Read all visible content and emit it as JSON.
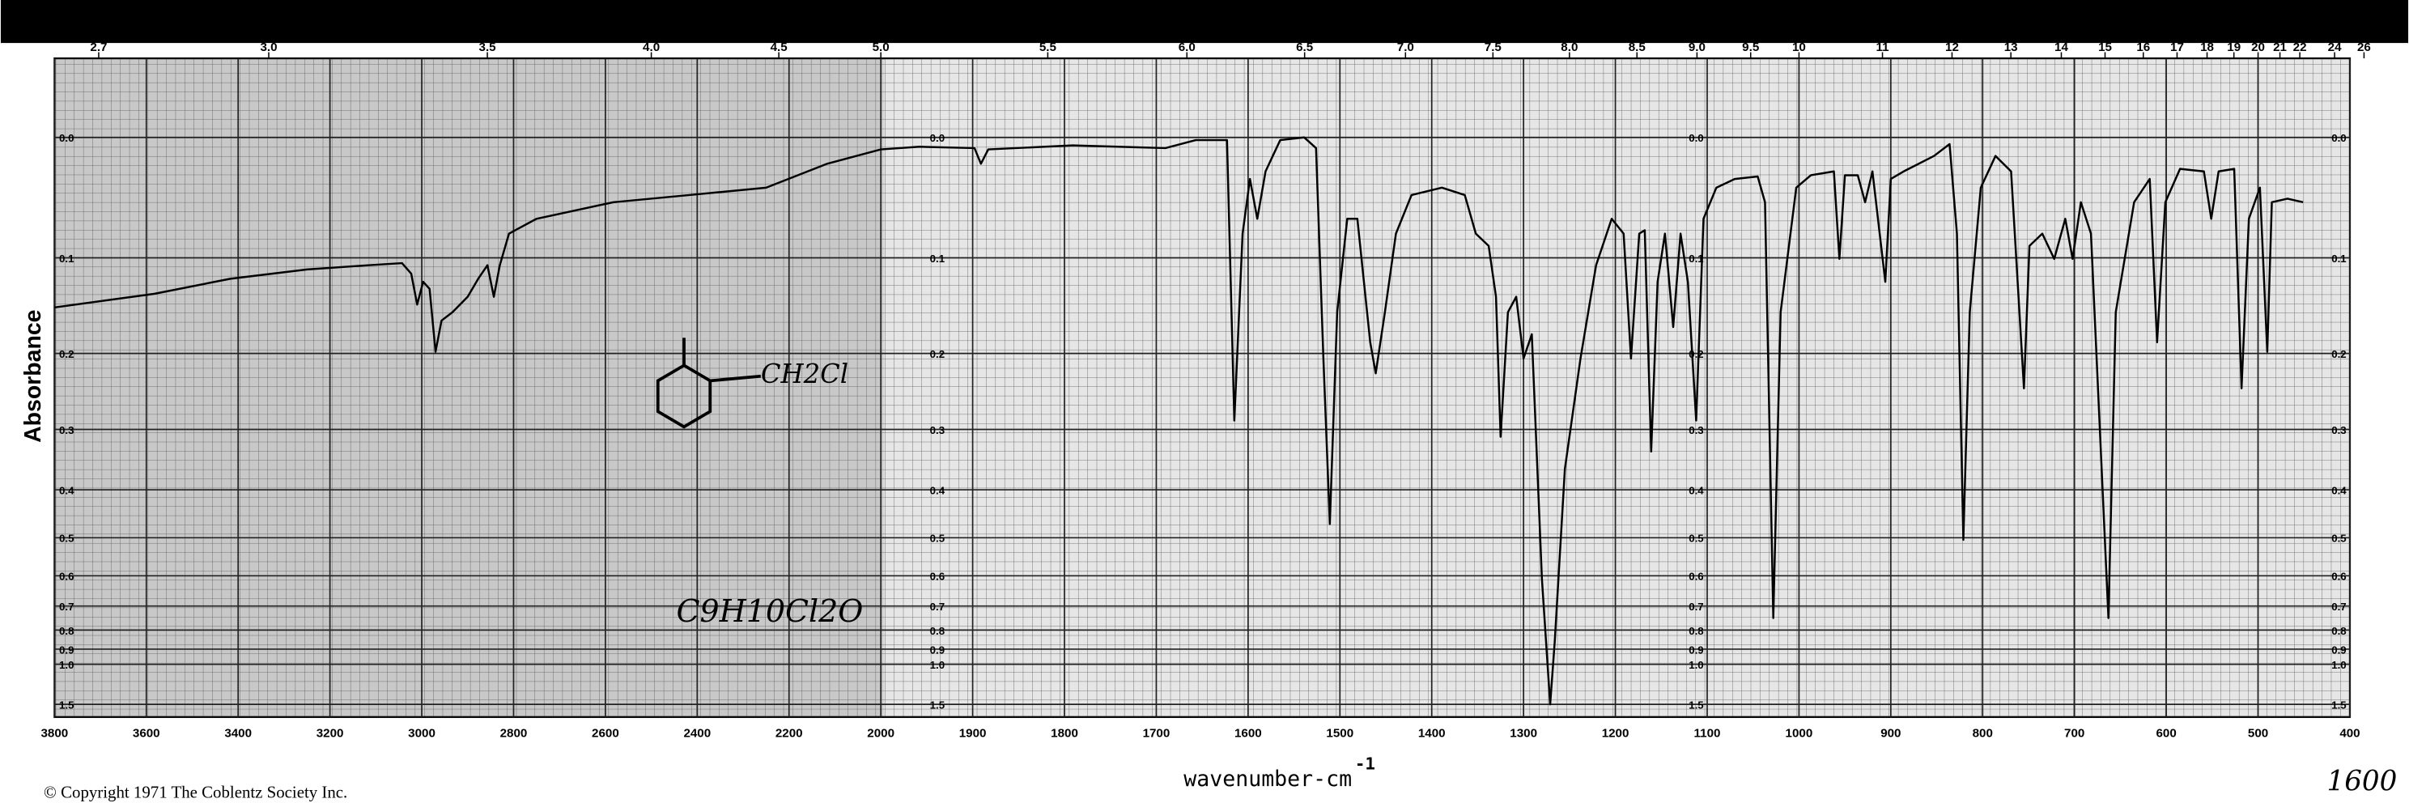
{
  "chart_data": {
    "type": "line",
    "xlabel": "wavenumber-cm",
    "xlabel_superscript": "-1",
    "ylabel": "Absorbance",
    "footer": "© Copyright 1971  The Coblentz Society Inc.",
    "annotations": [
      "C9H10Cl2O",
      "CH2Cl",
      "1600"
    ],
    "color": "#000000",
    "grid": true,
    "yscale": "absorbance",
    "x": [
      3800,
      3583,
      3417,
      3250,
      3117,
      3043,
      3023,
      3010,
      2997,
      2983,
      2970,
      2957,
      2933,
      2900,
      2877,
      2857,
      2843,
      2830,
      2810,
      2750,
      2583,
      2417,
      2250,
      2117,
      2000,
      1958,
      1898,
      1891,
      1883,
      1791,
      1690,
      1657,
      1623,
      1615,
      1606,
      1598,
      1590,
      1581,
      1565,
      1539,
      1526,
      1518,
      1511,
      1503,
      1492,
      1481,
      1467,
      1461,
      1451,
      1439,
      1422,
      1389,
      1364,
      1352,
      1338,
      1330,
      1325,
      1317,
      1308,
      1300,
      1291,
      1280,
      1271,
      1266,
      1255,
      1238,
      1221,
      1204,
      1191,
      1183,
      1174,
      1168,
      1161,
      1154,
      1146,
      1137,
      1129,
      1121,
      1112,
      1104,
      1090,
      1070,
      1045,
      1037,
      1028,
      1020,
      1003,
      987,
      962,
      956,
      950,
      936,
      928,
      920,
      906,
      900,
      886,
      853,
      836,
      828,
      821,
      814,
      802,
      786,
      769,
      755,
      749,
      735,
      722,
      710,
      702,
      693,
      682,
      663,
      655,
      635,
      618,
      610,
      601,
      585,
      559,
      551,
      543,
      526,
      518,
      510,
      498,
      490,
      485,
      468,
      451
    ],
    "values": [
      0.149,
      0.135,
      0.12,
      0.111,
      0.107,
      0.105,
      0.115,
      0.146,
      0.123,
      0.13,
      0.198,
      0.163,
      0.154,
      0.138,
      0.12,
      0.107,
      0.138,
      0.107,
      0.078,
      0.065,
      0.051,
      0.045,
      0.039,
      0.02,
      0.009,
      0.007,
      0.008,
      0.02,
      0.009,
      0.006,
      0.008,
      0.002,
      0.002,
      0.287,
      0.078,
      0.032,
      0.065,
      0.026,
      0.002,
      0,
      0.008,
      0.206,
      0.469,
      0.154,
      0.065,
      0.065,
      0.187,
      0.224,
      0.154,
      0.078,
      0.045,
      0.039,
      0.045,
      0.078,
      0.089,
      0.138,
      0.311,
      0.154,
      0.138,
      0.206,
      0.178,
      0.609,
      1.5,
      0.856,
      0.363,
      0.206,
      0.107,
      0.065,
      0.078,
      0.206,
      0.078,
      0.075,
      0.334,
      0.123,
      0.078,
      0.17,
      0.078,
      0.123,
      0.287,
      0.065,
      0.039,
      0.032,
      0.03,
      0.051,
      0.747,
      0.154,
      0.039,
      0.029,
      0.026,
      0.101,
      0.029,
      0.029,
      0.051,
      0.026,
      0.123,
      0.032,
      0.026,
      0.014,
      0.005,
      0.078,
      0.505,
      0.154,
      0.039,
      0.014,
      0.026,
      0.243,
      0.089,
      0.078,
      0.101,
      0.065,
      0.101,
      0.051,
      0.078,
      0.747,
      0.154,
      0.051,
      0.032,
      0.187,
      0.051,
      0.024,
      0.026,
      0.065,
      0.026,
      0.024,
      0.243,
      0.065,
      0.039,
      0.198,
      0.051,
      0.048,
      0.051
    ],
    "xlim": [
      3800,
      400
    ],
    "xticks": [
      3800,
      3600,
      3400,
      3200,
      3000,
      2800,
      2600,
      2400,
      2200,
      2000,
      1900,
      1800,
      1700,
      1600,
      1500,
      1400,
      1300,
      1200,
      1100,
      1000,
      900,
      800,
      700,
      600,
      500,
      400
    ],
    "ylim": [
      -0.055,
      2
    ],
    "yticks": [
      {
        "value": 0,
        "label": "0.0"
      },
      0.1,
      0.2,
      0.3,
      0.4,
      0.5,
      0.6,
      0.7,
      0.8,
      0.9,
      {
        "value": 1,
        "label": "1.0"
      },
      1.5
    ],
    "x2scale": "micrometer",
    "x2ticks": [
      2.7,
      {
        "value": 3,
        "label": "3.0"
      },
      3.5,
      {
        "value": 4,
        "label": "4.0"
      },
      4.5,
      {
        "value": 5,
        "label": "5.0"
      },
      5.5,
      {
        "value": 6,
        "label": "6.0"
      },
      6.5,
      {
        "value": 7,
        "label": "7.0"
      },
      7.5,
      {
        "value": 8,
        "label": "8.0"
      },
      8.5,
      {
        "value": 9,
        "label": "9.0"
      },
      9.5,
      10,
      11,
      12,
      13,
      14,
      15,
      16,
      17,
      18,
      19,
      20,
      21,
      22,
      24,
      26
    ]
  }
}
